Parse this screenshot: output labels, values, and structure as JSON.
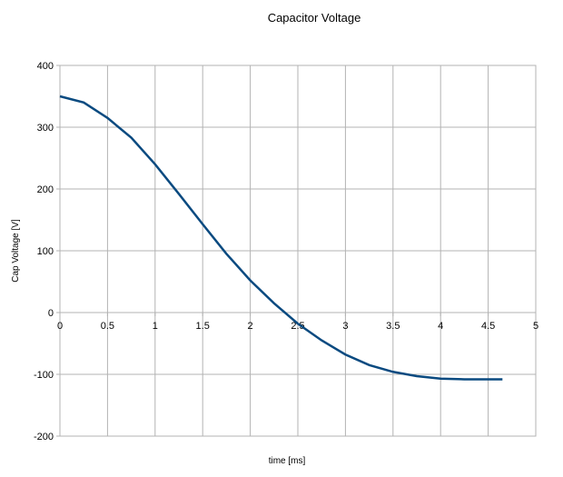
{
  "chart_data": {
    "type": "line",
    "title": "Capacitor Voltage",
    "x_label": "time [ms]",
    "y_label": "Cap Voltage [V]",
    "x": [
      0,
      0.25,
      0.5,
      0.75,
      1.0,
      1.25,
      1.5,
      1.75,
      2.0,
      2.25,
      2.5,
      2.75,
      3.0,
      3.25,
      3.5,
      3.75,
      4.0,
      4.25,
      4.5,
      4.65
    ],
    "series": [
      {
        "name": "Cap Voltage",
        "color": "#0a4a80",
        "values": [
          350,
          340,
          315,
          283,
          240,
          192,
          143,
          95,
          52,
          15,
          -18,
          -45,
          -68,
          -85,
          -96,
          -103,
          -107,
          -108,
          -108,
          -108
        ]
      }
    ],
    "xlim": [
      0,
      5
    ],
    "xticks": [
      0,
      0.5,
      1,
      1.5,
      2,
      2.5,
      3,
      3.5,
      4,
      4.5,
      5
    ],
    "ylim": [
      -200,
      400
    ],
    "yticks": [
      -200,
      -100,
      0,
      100,
      200,
      300,
      400
    ],
    "grid": true
  }
}
